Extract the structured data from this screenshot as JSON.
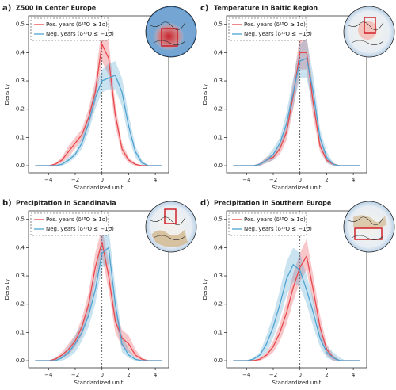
{
  "chart_data": [
    {
      "type": "density",
      "label": "a)",
      "title": "Z500 in Center Europe",
      "xlabel": "Standardized unit",
      "ylabel": "Density",
      "x": [
        -5,
        -4.5,
        -4,
        -3.5,
        -3,
        -2.5,
        -2,
        -1.5,
        -1,
        -0.5,
        0,
        0.5,
        1,
        1.5,
        2,
        2.5,
        3,
        3.5,
        4,
        4.5
      ],
      "xlim": [
        -5.5,
        5
      ],
      "xticks": [
        {
          "value": -4,
          "label": "−4"
        },
        {
          "value": -2,
          "label": "−2"
        },
        0,
        2,
        4
      ],
      "ylim": [
        -0.025,
        0.53
      ],
      "yticks": [
        {
          "value": 0,
          "label": "0.0"
        },
        0.1,
        0.2,
        0.3,
        0.4,
        0.5
      ],
      "vline": 0,
      "series": [
        {
          "name": "Pos. years (δ¹⁸O ≥ 1σ)",
          "color": "#e8474c",
          "values": [
            0,
            0,
            0,
            0.005,
            0.02,
            0.05,
            0.08,
            0.11,
            0.17,
            0.26,
            0.43,
            0.38,
            0.18,
            0.06,
            0.02,
            0.005,
            0,
            0,
            0,
            0
          ],
          "lower": [
            0,
            0,
            0,
            0,
            0.01,
            0.03,
            0.06,
            0.09,
            0.14,
            0.22,
            0.37,
            0.32,
            0.14,
            0.04,
            0.01,
            0,
            0,
            0,
            0,
            0
          ],
          "upper": [
            0,
            0,
            0,
            0.01,
            0.03,
            0.07,
            0.1,
            0.13,
            0.2,
            0.3,
            0.5,
            0.44,
            0.22,
            0.08,
            0.03,
            0.01,
            0,
            0,
            0,
            0
          ]
        },
        {
          "name": "Neg. years (δ¹⁸O ≤ −1σ)",
          "color": "#4fa3d1",
          "values": [
            0,
            0,
            0,
            0,
            0.005,
            0.02,
            0.04,
            0.08,
            0.15,
            0.24,
            0.3,
            0.31,
            0.32,
            0.26,
            0.14,
            0.05,
            0.01,
            0,
            0,
            0
          ],
          "lower": [
            0,
            0,
            0,
            0,
            0,
            0.01,
            0.03,
            0.06,
            0.12,
            0.2,
            0.26,
            0.27,
            0.27,
            0.21,
            0.1,
            0.03,
            0,
            0,
            0,
            0
          ],
          "upper": [
            0,
            0,
            0,
            0,
            0.01,
            0.03,
            0.05,
            0.1,
            0.18,
            0.28,
            0.34,
            0.36,
            0.37,
            0.31,
            0.18,
            0.07,
            0.02,
            0,
            0,
            0
          ]
        }
      ]
    },
    {
      "type": "density",
      "label": "b)",
      "title": "Precipitation in Scandinavia",
      "xlabel": "Standardized unit",
      "ylabel": "Density",
      "x": [
        -5,
        -4.5,
        -4,
        -3.5,
        -3,
        -2.5,
        -2,
        -1.5,
        -1,
        -0.5,
        0,
        0.5,
        1,
        1.5,
        2,
        2.5,
        3,
        3.5,
        4,
        4.5
      ],
      "xlim": [
        -5.5,
        5
      ],
      "xticks": [
        {
          "value": -4,
          "label": "−4"
        },
        {
          "value": -2,
          "label": "−2"
        },
        0,
        2,
        4
      ],
      "ylim": [
        -0.025,
        0.53
      ],
      "yticks": [
        {
          "value": 0,
          "label": "0.0"
        },
        0.1,
        0.2,
        0.3,
        0.4,
        0.5
      ],
      "vline": 0,
      "series": [
        {
          "name": "Pos. years (δ¹⁸O ≥ 1σ)",
          "color": "#e8474c",
          "values": [
            0,
            0,
            0,
            0.005,
            0.02,
            0.04,
            0.07,
            0.12,
            0.2,
            0.33,
            0.42,
            0.3,
            0.14,
            0.08,
            0.06,
            0.02,
            0.005,
            0,
            0,
            0
          ],
          "lower": [
            0,
            0,
            0,
            0,
            0.01,
            0.02,
            0.05,
            0.09,
            0.16,
            0.28,
            0.37,
            0.25,
            0.1,
            0.05,
            0.03,
            0.01,
            0,
            0,
            0,
            0
          ],
          "upper": [
            0,
            0,
            0,
            0.01,
            0.03,
            0.06,
            0.09,
            0.15,
            0.24,
            0.38,
            0.47,
            0.35,
            0.18,
            0.11,
            0.09,
            0.04,
            0.01,
            0,
            0,
            0
          ]
        },
        {
          "name": "Neg. years (δ¹⁸O ≤ −1σ)",
          "color": "#4fa3d1",
          "values": [
            0,
            0,
            0,
            0,
            0.01,
            0.03,
            0.06,
            0.1,
            0.16,
            0.25,
            0.38,
            0.4,
            0.2,
            0.06,
            0.02,
            0.005,
            0,
            0,
            0,
            0
          ],
          "lower": [
            0,
            0,
            0,
            0,
            0,
            0.01,
            0.03,
            0.07,
            0.12,
            0.2,
            0.33,
            0.34,
            0.15,
            0.03,
            0.01,
            0,
            0,
            0,
            0,
            0
          ],
          "upper": [
            0,
            0,
            0,
            0.01,
            0.02,
            0.05,
            0.09,
            0.13,
            0.2,
            0.3,
            0.45,
            0.47,
            0.26,
            0.09,
            0.04,
            0.01,
            0,
            0,
            0,
            0
          ]
        }
      ]
    },
    {
      "type": "density",
      "label": "c)",
      "title": "Temperature in Baltic Region",
      "xlabel": "Standardized unit",
      "ylabel": "Density",
      "x": [
        -5,
        -4.5,
        -4,
        -3.5,
        -3,
        -2.5,
        -2,
        -1.5,
        -1,
        -0.5,
        0,
        0.5,
        1,
        1.5,
        2,
        2.5,
        3,
        3.5,
        4,
        4.5
      ],
      "xlim": [
        -5.5,
        5
      ],
      "xticks": [
        {
          "value": -4,
          "label": "−4"
        },
        {
          "value": -2,
          "label": "−2"
        },
        0,
        2,
        4
      ],
      "ylim": [
        -0.025,
        0.53
      ],
      "yticks": [
        {
          "value": 0,
          "label": "0.0"
        },
        0.1,
        0.2,
        0.3,
        0.4,
        0.5
      ],
      "vline": 0,
      "series": [
        {
          "name": "Pos. years (δ¹⁸O ≥ 1σ)",
          "color": "#e8474c",
          "values": [
            0,
            0,
            0,
            0,
            0.005,
            0.02,
            0.03,
            0.06,
            0.12,
            0.25,
            0.4,
            0.4,
            0.22,
            0.07,
            0.02,
            0.005,
            0,
            0,
            0,
            0
          ],
          "lower": [
            0,
            0,
            0,
            0,
            0,
            0.01,
            0.02,
            0.04,
            0.09,
            0.2,
            0.34,
            0.34,
            0.17,
            0.05,
            0.01,
            0,
            0,
            0,
            0,
            0
          ],
          "upper": [
            0,
            0,
            0,
            0,
            0.01,
            0.03,
            0.04,
            0.08,
            0.15,
            0.3,
            0.46,
            0.46,
            0.27,
            0.09,
            0.03,
            0.01,
            0,
            0,
            0,
            0
          ]
        },
        {
          "name": "Neg. years (δ¹⁸O ≤ −1σ)",
          "color": "#4fa3d1",
          "values": [
            0,
            0,
            0,
            0,
            0.005,
            0.02,
            0.04,
            0.08,
            0.15,
            0.26,
            0.37,
            0.38,
            0.26,
            0.1,
            0.03,
            0.005,
            0,
            0,
            0,
            0
          ],
          "lower": [
            0,
            0,
            0,
            0,
            0,
            0.01,
            0.02,
            0.06,
            0.11,
            0.21,
            0.31,
            0.31,
            0.2,
            0.07,
            0.01,
            0,
            0,
            0,
            0,
            0
          ],
          "upper": [
            0,
            0,
            0,
            0,
            0.01,
            0.03,
            0.06,
            0.1,
            0.19,
            0.31,
            0.43,
            0.45,
            0.32,
            0.13,
            0.05,
            0.01,
            0,
            0,
            0,
            0
          ]
        }
      ]
    },
    {
      "type": "density",
      "label": "d)",
      "title": "Precipitation in Southern Europe",
      "xlabel": "Standardized unit",
      "ylabel": "Density",
      "x": [
        -5,
        -4.5,
        -4,
        -3.5,
        -3,
        -2.5,
        -2,
        -1.5,
        -1,
        -0.5,
        0,
        0.5,
        1,
        1.5,
        2,
        2.5,
        3,
        3.5,
        4,
        4.5
      ],
      "xlim": [
        -5.5,
        5
      ],
      "xticks": [
        {
          "value": -4,
          "label": "−4"
        },
        {
          "value": -2,
          "label": "−2"
        },
        0,
        2,
        4
      ],
      "ylim": [
        -0.025,
        0.53
      ],
      "yticks": [
        {
          "value": 0,
          "label": "0.0"
        },
        0.1,
        0.2,
        0.3,
        0.4,
        0.5
      ],
      "vline": 0,
      "series": [
        {
          "name": "Pos. years (δ¹⁸O ≥ 1σ)",
          "color": "#e8474c",
          "values": [
            0,
            0,
            0,
            0,
            0.005,
            0.02,
            0.05,
            0.1,
            0.17,
            0.26,
            0.33,
            0.37,
            0.25,
            0.12,
            0.04,
            0.01,
            0,
            0,
            0,
            0
          ],
          "lower": [
            0,
            0,
            0,
            0,
            0,
            0.01,
            0.03,
            0.07,
            0.13,
            0.21,
            0.28,
            0.32,
            0.2,
            0.09,
            0.02,
            0,
            0,
            0,
            0,
            0
          ],
          "upper": [
            0,
            0,
            0,
            0,
            0.01,
            0.03,
            0.07,
            0.13,
            0.21,
            0.31,
            0.38,
            0.43,
            0.3,
            0.16,
            0.06,
            0.02,
            0,
            0,
            0,
            0
          ]
        },
        {
          "name": "Neg. years (δ¹⁸O ≤ −1σ)",
          "color": "#4fa3d1",
          "values": [
            0,
            0,
            0,
            0.005,
            0.02,
            0.06,
            0.12,
            0.2,
            0.29,
            0.34,
            0.32,
            0.25,
            0.17,
            0.08,
            0.03,
            0.01,
            0,
            0,
            0,
            0
          ],
          "lower": [
            0,
            0,
            0,
            0,
            0.01,
            0.03,
            0.08,
            0.15,
            0.23,
            0.28,
            0.26,
            0.2,
            0.12,
            0.05,
            0.01,
            0,
            0,
            0,
            0,
            0
          ],
          "upper": [
            0,
            0,
            0,
            0.01,
            0.03,
            0.09,
            0.16,
            0.25,
            0.35,
            0.4,
            0.38,
            0.3,
            0.22,
            0.11,
            0.05,
            0.03,
            0.01,
            0,
            0,
            0
          ]
        }
      ]
    }
  ]
}
